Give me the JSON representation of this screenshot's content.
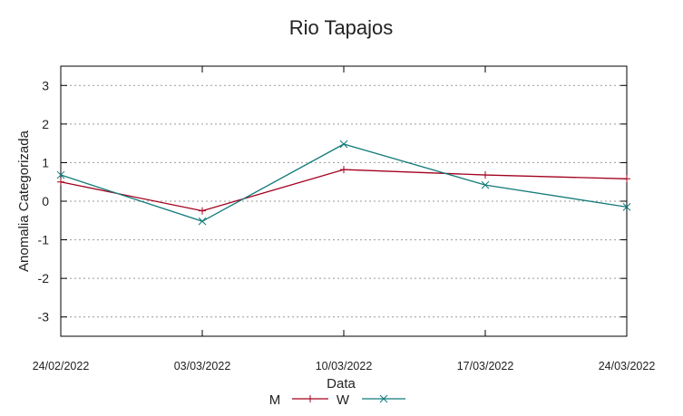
{
  "chart_data": {
    "type": "line",
    "title": "Rio Tapajos",
    "xlabel": "Data",
    "ylabel": "Anomalia Categorizada",
    "categories": [
      "24/02/2022",
      "03/03/2022",
      "10/03/2022",
      "17/03/2022",
      "24/03/2022"
    ],
    "ylim": [
      -3.5,
      3.5
    ],
    "yticks": [
      3,
      2,
      1,
      0,
      -1,
      -2,
      -3
    ],
    "grid": true,
    "legend_position": "bottom",
    "series": [
      {
        "name": "M",
        "color": "#a3001e",
        "marker": "plus",
        "values": [
          0.5,
          -0.25,
          0.82,
          0.68,
          0.58
        ]
      },
      {
        "name": "W",
        "color": "#137a7a",
        "marker": "cross",
        "values": [
          0.68,
          -0.52,
          1.48,
          0.42,
          -0.15
        ]
      }
    ]
  }
}
